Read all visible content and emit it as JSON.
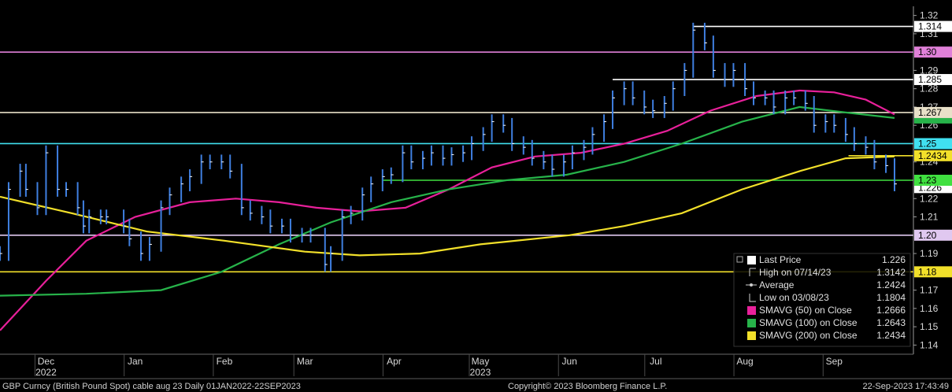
{
  "chart_data": {
    "type": "line",
    "title": "",
    "xlabel": "",
    "ylabel": "",
    "ylim": [
      1.135,
      1.325
    ],
    "y_ticks": [
      "1.32",
      "1.31",
      "1.29",
      "1.28",
      "1.27",
      "1.26",
      "1.24",
      "1.22",
      "1.21",
      "1.19",
      "1.17",
      "1.16",
      "1.15",
      "1.14"
    ],
    "y_tick_values": [
      1.32,
      1.31,
      1.29,
      1.28,
      1.27,
      1.26,
      1.24,
      1.22,
      1.21,
      1.19,
      1.17,
      1.16,
      1.15,
      1.14
    ],
    "x_labels": [
      {
        "label": "Dec",
        "sub": "2022",
        "date": "2022-12-01"
      },
      {
        "label": "Jan",
        "sub": "",
        "date": "2023-01-01"
      },
      {
        "label": "Feb",
        "sub": "",
        "date": "2023-02-01"
      },
      {
        "label": "Mar",
        "sub": "",
        "date": "2023-03-01"
      },
      {
        "label": "Apr",
        "sub": "",
        "date": "2023-04-01"
      },
      {
        "label": "May",
        "sub": "2023",
        "date": "2023-05-01"
      },
      {
        "label": "Jun",
        "sub": "",
        "date": "2023-06-01"
      },
      {
        "label": "Jul",
        "sub": "",
        "date": "2023-07-01"
      },
      {
        "label": "Aug",
        "sub": "",
        "date": "2023-08-01"
      },
      {
        "label": "Sep",
        "sub": "",
        "date": "2023-09-01"
      }
    ],
    "x_range": [
      "2022-11-15",
      "2023-09-22"
    ],
    "grid": false,
    "price_series": {
      "name": "Last Price",
      "color": "#3f7fe0",
      "points": [
        [
          "2022-11-15",
          1.19
        ],
        [
          "2022-11-18",
          1.225
        ],
        [
          "2022-11-22",
          1.235
        ],
        [
          "2022-11-24",
          1.225
        ],
        [
          "2022-11-28",
          1.215
        ],
        [
          "2022-12-01",
          1.245
        ],
        [
          "2022-12-05",
          1.225
        ],
        [
          "2022-12-08",
          1.225
        ],
        [
          "2022-12-12",
          1.215
        ],
        [
          "2022-12-14",
          1.205
        ],
        [
          "2022-12-16",
          1.21
        ],
        [
          "2022-12-20",
          1.21
        ],
        [
          "2022-12-22",
          1.21
        ],
        [
          "2022-12-28",
          1.205
        ],
        [
          "2022-12-30",
          1.198
        ],
        [
          "2023-01-03",
          1.19
        ],
        [
          "2023-01-06",
          1.195
        ],
        [
          "2023-01-10",
          1.215
        ],
        [
          "2023-01-13",
          1.222
        ],
        [
          "2023-01-17",
          1.228
        ],
        [
          "2023-01-20",
          1.232
        ],
        [
          "2023-01-24",
          1.24
        ],
        [
          "2023-01-27",
          1.24
        ],
        [
          "2023-01-31",
          1.24
        ],
        [
          "2023-02-03",
          1.235
        ],
        [
          "2023-02-07",
          1.215
        ],
        [
          "2023-02-10",
          1.212
        ],
        [
          "2023-02-14",
          1.21
        ],
        [
          "2023-02-17",
          1.205
        ],
        [
          "2023-02-21",
          1.205
        ],
        [
          "2023-02-24",
          1.2
        ],
        [
          "2023-02-28",
          1.2
        ],
        [
          "2023-03-03",
          1.2
        ],
        [
          "2023-03-08",
          1.184
        ],
        [
          "2023-03-10",
          1.19
        ],
        [
          "2023-03-14",
          1.21
        ],
        [
          "2023-03-17",
          1.212
        ],
        [
          "2023-03-21",
          1.222
        ],
        [
          "2023-03-24",
          1.228
        ],
        [
          "2023-03-28",
          1.232
        ],
        [
          "2023-03-31",
          1.233
        ],
        [
          "2023-04-04",
          1.245
        ],
        [
          "2023-04-07",
          1.24
        ],
        [
          "2023-04-11",
          1.242
        ],
        [
          "2023-04-14",
          1.245
        ],
        [
          "2023-04-18",
          1.242
        ],
        [
          "2023-04-21",
          1.244
        ],
        [
          "2023-04-25",
          1.245
        ],
        [
          "2023-04-28",
          1.25
        ],
        [
          "2023-05-02",
          1.255
        ],
        [
          "2023-05-05",
          1.262
        ],
        [
          "2023-05-09",
          1.26
        ],
        [
          "2023-05-12",
          1.25
        ],
        [
          "2023-05-16",
          1.248
        ],
        [
          "2023-05-19",
          1.242
        ],
        [
          "2023-05-23",
          1.24
        ],
        [
          "2023-05-26",
          1.236
        ],
        [
          "2023-05-30",
          1.24
        ],
        [
          "2023-06-02",
          1.245
        ],
        [
          "2023-06-06",
          1.248
        ],
        [
          "2023-06-09",
          1.255
        ],
        [
          "2023-06-13",
          1.262
        ],
        [
          "2023-06-16",
          1.275
        ],
        [
          "2023-06-20",
          1.28
        ],
        [
          "2023-06-23",
          1.275
        ],
        [
          "2023-06-27",
          1.27
        ],
        [
          "2023-06-30",
          1.268
        ],
        [
          "2023-07-04",
          1.272
        ],
        [
          "2023-07-07",
          1.28
        ],
        [
          "2023-07-11",
          1.29
        ],
        [
          "2023-07-14",
          1.312
        ],
        [
          "2023-07-18",
          1.305
        ],
        [
          "2023-07-21",
          1.29
        ],
        [
          "2023-07-25",
          1.285
        ],
        [
          "2023-07-28",
          1.29
        ],
        [
          "2023-08-01",
          1.28
        ],
        [
          "2023-08-04",
          1.275
        ],
        [
          "2023-08-08",
          1.275
        ],
        [
          "2023-08-11",
          1.27
        ],
        [
          "2023-08-15",
          1.275
        ],
        [
          "2023-08-18",
          1.275
        ],
        [
          "2023-08-22",
          1.272
        ],
        [
          "2023-08-25",
          1.26
        ],
        [
          "2023-08-29",
          1.262
        ],
        [
          "2023-09-01",
          1.26
        ],
        [
          "2023-09-05",
          1.255
        ],
        [
          "2023-09-08",
          1.25
        ],
        [
          "2023-09-12",
          1.248
        ],
        [
          "2023-09-15",
          1.24
        ],
        [
          "2023-09-19",
          1.238
        ],
        [
          "2023-09-22",
          1.228
        ]
      ]
    },
    "sma_series": [
      {
        "name": "SMAVG (50)  on Close",
        "color": "#e8209a",
        "points": [
          [
            "2022-11-15",
            1.148
          ],
          [
            "2022-12-01",
            1.175
          ],
          [
            "2022-12-15",
            1.197
          ],
          [
            "2023-01-01",
            1.21
          ],
          [
            "2023-01-20",
            1.218
          ],
          [
            "2023-02-05",
            1.22
          ],
          [
            "2023-02-20",
            1.218
          ],
          [
            "2023-03-05",
            1.215
          ],
          [
            "2023-03-20",
            1.213
          ],
          [
            "2023-04-05",
            1.215
          ],
          [
            "2023-04-20",
            1.225
          ],
          [
            "2023-05-05",
            1.237
          ],
          [
            "2023-05-20",
            1.243
          ],
          [
            "2023-06-05",
            1.245
          ],
          [
            "2023-06-20",
            1.25
          ],
          [
            "2023-07-05",
            1.257
          ],
          [
            "2023-07-20",
            1.268
          ],
          [
            "2023-08-05",
            1.276
          ],
          [
            "2023-08-20",
            1.279
          ],
          [
            "2023-09-01",
            1.278
          ],
          [
            "2023-09-12",
            1.274
          ],
          [
            "2023-09-22",
            1.266
          ]
        ]
      },
      {
        "name": "SMAVG (100)  on Close",
        "color": "#27b34a",
        "points": [
          [
            "2022-11-15",
            1.167
          ],
          [
            "2022-12-15",
            1.168
          ],
          [
            "2023-01-10",
            1.17
          ],
          [
            "2023-01-31",
            1.18
          ],
          [
            "2023-02-20",
            1.195
          ],
          [
            "2023-03-10",
            1.207
          ],
          [
            "2023-03-31",
            1.218
          ],
          [
            "2023-04-20",
            1.225
          ],
          [
            "2023-05-10",
            1.23
          ],
          [
            "2023-05-31",
            1.233
          ],
          [
            "2023-06-20",
            1.24
          ],
          [
            "2023-07-10",
            1.25
          ],
          [
            "2023-07-31",
            1.262
          ],
          [
            "2023-08-20",
            1.27
          ],
          [
            "2023-09-05",
            1.267
          ],
          [
            "2023-09-22",
            1.264
          ]
        ]
      },
      {
        "name": "SMAVG (200)  on Close",
        "color": "#f2e02a",
        "points": [
          [
            "2022-11-15",
            1.221
          ],
          [
            "2022-12-10",
            1.212
          ],
          [
            "2023-01-05",
            1.202
          ],
          [
            "2023-02-01",
            1.197
          ],
          [
            "2023-03-01",
            1.191
          ],
          [
            "2023-03-20",
            1.189
          ],
          [
            "2023-04-10",
            1.19
          ],
          [
            "2023-05-01",
            1.195
          ],
          [
            "2023-06-01",
            1.2
          ],
          [
            "2023-06-20",
            1.205
          ],
          [
            "2023-07-10",
            1.212
          ],
          [
            "2023-07-31",
            1.225
          ],
          [
            "2023-08-20",
            1.235
          ],
          [
            "2023-09-05",
            1.242
          ],
          [
            "2023-09-22",
            1.243
          ]
        ]
      }
    ],
    "horizontal_levels": [
      {
        "value": 1.314,
        "label": "1.314",
        "color": "#ffffff",
        "start": "2023-07-14"
      },
      {
        "value": 1.3,
        "label": "1.30",
        "color": "#e080d8",
        "start": "2022-11-15"
      },
      {
        "value": 1.285,
        "label": "1.285",
        "color": "#ffffff",
        "start": "2023-06-16"
      },
      {
        "value": 1.267,
        "label": "1.267",
        "color": "#e8e0c8",
        "start": "2022-11-15"
      },
      {
        "value": 1.25,
        "label": "1.25",
        "color": "#40e0f0",
        "start": "2022-11-15"
      },
      {
        "value": 1.2434,
        "label": "1.2434",
        "color": "#f2e02a",
        "start": "2023-09-06"
      },
      {
        "value": 1.23,
        "label": "1.23",
        "color": "#40e040",
        "start": "2023-03-28"
      },
      {
        "value": 1.2,
        "label": "1.20",
        "color": "#e0c8f0",
        "start": "2022-11-15"
      },
      {
        "value": 1.18,
        "label": "1.18",
        "color": "#f2e02a",
        "start": "2022-11-15"
      }
    ],
    "axis_tags_extra": [
      {
        "value": 1.266,
        "label": "",
        "color": "#e8209a"
      },
      {
        "value": 1.264,
        "label": "",
        "color": "#27b34a"
      },
      {
        "value": 1.226,
        "label": "1.226",
        "color": "#ffffff"
      }
    ],
    "legend": {
      "placement": "bottom-right",
      "items": [
        {
          "swatch": "#ffffff",
          "label": "Last Price",
          "value": "1.226",
          "kind": "box"
        },
        {
          "swatch": "",
          "label": "High on 07/14/23",
          "value": "1.3142",
          "kind": "high"
        },
        {
          "swatch": "",
          "label": "Average",
          "value": "1.2424",
          "kind": "avg"
        },
        {
          "swatch": "",
          "label": "Low on 03/08/23",
          "value": "1.1804",
          "kind": "low"
        },
        {
          "swatch": "#e8209a",
          "label": "SMAVG (50)  on Close",
          "value": "1.2666",
          "kind": "box"
        },
        {
          "swatch": "#27b34a",
          "label": "SMAVG (100)  on Close",
          "value": "1.2643",
          "kind": "box"
        },
        {
          "swatch": "#f2e02a",
          "label": "SMAVG (200)  on Close",
          "value": "1.2434",
          "kind": "box"
        }
      ]
    }
  },
  "footer": {
    "left": "GBP Curncy (British Pound Spot) cable aug 23  Daily 01JAN2022-22SEP2023",
    "center": "Copyright© 2023 Bloomberg Finance L.P.",
    "right": "22-Sep-2023 17:43:49"
  }
}
